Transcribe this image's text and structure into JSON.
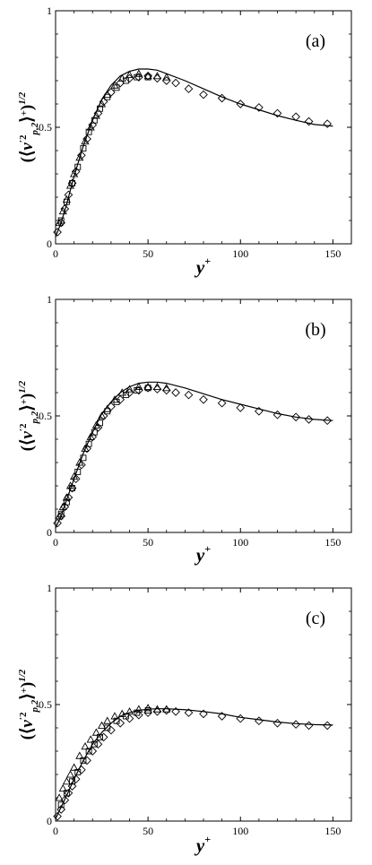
{
  "chart_data": [
    {
      "type": "line",
      "panel_label": "(a)",
      "xlabel": "y",
      "xlabel_sup": "+",
      "ylabel": "(⟨v′²p,2⟩⁺)¹ᐟ²",
      "xlim": [
        0,
        160
      ],
      "ylim": [
        0,
        1
      ],
      "xticks": [
        0,
        50,
        100,
        150
      ],
      "yticks": [
        0,
        0.5,
        1
      ],
      "xtick_labels": [
        "0",
        "50",
        "100",
        "150"
      ],
      "ytick_labels": [
        "0",
        "0.5",
        "1"
      ],
      "grid": false,
      "line": {
        "x": [
          0,
          3,
          6,
          10,
          15,
          20,
          25,
          30,
          35,
          40,
          45,
          50,
          55,
          60,
          70,
          80,
          90,
          100,
          110,
          120,
          130,
          140,
          150
        ],
        "y": [
          0.03,
          0.09,
          0.17,
          0.29,
          0.42,
          0.53,
          0.62,
          0.68,
          0.72,
          0.74,
          0.75,
          0.75,
          0.745,
          0.73,
          0.7,
          0.665,
          0.63,
          0.6,
          0.575,
          0.55,
          0.53,
          0.512,
          0.505
        ]
      },
      "series": [
        {
          "marker": "diamond",
          "x": [
            1,
            3,
            5,
            7,
            9,
            11,
            14,
            17,
            20,
            23,
            26,
            30,
            35,
            40,
            45,
            50,
            55,
            60,
            65,
            72,
            80,
            90,
            100,
            110,
            120,
            130,
            137,
            147
          ],
          "y": [
            0.05,
            0.09,
            0.15,
            0.21,
            0.26,
            0.31,
            0.38,
            0.45,
            0.51,
            0.56,
            0.61,
            0.65,
            0.69,
            0.71,
            0.715,
            0.72,
            0.71,
            0.7,
            0.69,
            0.665,
            0.64,
            0.625,
            0.6,
            0.585,
            0.56,
            0.545,
            0.525,
            0.515
          ]
        },
        {
          "marker": "triangle",
          "x": [
            2,
            4,
            6,
            8,
            10,
            13,
            16,
            19,
            22,
            25,
            28,
            32,
            36,
            40,
            45,
            50,
            55,
            60
          ],
          "y": [
            0.09,
            0.14,
            0.19,
            0.25,
            0.3,
            0.37,
            0.44,
            0.5,
            0.55,
            0.6,
            0.64,
            0.68,
            0.71,
            0.725,
            0.73,
            0.72,
            0.72,
            0.715
          ]
        },
        {
          "marker": "square",
          "x": [
            3,
            6,
            9,
            12,
            15,
            18,
            21,
            24,
            28,
            33,
            38,
            44,
            50
          ],
          "y": [
            0.1,
            0.18,
            0.26,
            0.33,
            0.41,
            0.48,
            0.53,
            0.58,
            0.63,
            0.67,
            0.7,
            0.715,
            0.715
          ]
        }
      ]
    },
    {
      "type": "line",
      "panel_label": "(b)",
      "xlabel": "y",
      "xlabel_sup": "+",
      "ylabel": "(⟨v′²p,2⟩⁺)¹ᐟ²",
      "xlim": [
        0,
        160
      ],
      "ylim": [
        0,
        1
      ],
      "xticks": [
        0,
        50,
        100,
        150
      ],
      "yticks": [
        0,
        0.5,
        1
      ],
      "xtick_labels": [
        "0",
        "50",
        "100",
        "150"
      ],
      "ytick_labels": [
        "0",
        "0.5",
        "1"
      ],
      "grid": false,
      "line": {
        "x": [
          0,
          3,
          6,
          10,
          15,
          20,
          25,
          30,
          35,
          40,
          45,
          50,
          55,
          60,
          70,
          80,
          90,
          100,
          110,
          120,
          130,
          140,
          150
        ],
        "y": [
          0.02,
          0.07,
          0.14,
          0.23,
          0.34,
          0.43,
          0.51,
          0.56,
          0.6,
          0.625,
          0.64,
          0.645,
          0.645,
          0.64,
          0.62,
          0.595,
          0.57,
          0.55,
          0.53,
          0.51,
          0.495,
          0.485,
          0.48
        ]
      },
      "series": [
        {
          "marker": "diamond",
          "x": [
            1,
            3,
            5,
            7,
            9,
            11,
            14,
            17,
            20,
            23,
            26,
            30,
            35,
            40,
            45,
            50,
            55,
            60,
            65,
            72,
            80,
            90,
            100,
            110,
            120,
            130,
            137,
            147
          ],
          "y": [
            0.04,
            0.07,
            0.11,
            0.15,
            0.19,
            0.23,
            0.29,
            0.36,
            0.41,
            0.45,
            0.5,
            0.54,
            0.57,
            0.6,
            0.61,
            0.62,
            0.615,
            0.61,
            0.6,
            0.59,
            0.57,
            0.555,
            0.535,
            0.52,
            0.505,
            0.495,
            0.485,
            0.48
          ]
        },
        {
          "marker": "triangle",
          "x": [
            2,
            4,
            6,
            8,
            10,
            13,
            16,
            19,
            22,
            25,
            28,
            32,
            36,
            40,
            45,
            50,
            55,
            60
          ],
          "y": [
            0.07,
            0.11,
            0.15,
            0.2,
            0.24,
            0.3,
            0.36,
            0.41,
            0.46,
            0.5,
            0.53,
            0.57,
            0.6,
            0.615,
            0.625,
            0.625,
            0.625,
            0.62
          ]
        },
        {
          "marker": "square",
          "x": [
            3,
            6,
            9,
            12,
            15,
            18,
            21,
            24,
            28,
            33,
            38,
            44,
            50
          ],
          "y": [
            0.08,
            0.13,
            0.19,
            0.26,
            0.32,
            0.38,
            0.43,
            0.47,
            0.52,
            0.56,
            0.59,
            0.61,
            0.62
          ]
        }
      ]
    },
    {
      "type": "line",
      "panel_label": "(c)",
      "xlabel": "y",
      "xlabel_sup": "+",
      "ylabel": "(⟨v′²p,2⟩⁺)¹ᐟ²",
      "xlim": [
        0,
        160
      ],
      "ylim": [
        0,
        1
      ],
      "xticks": [
        0,
        50,
        100,
        150
      ],
      "yticks": [
        0,
        0.5,
        1
      ],
      "xtick_labels": [
        "0",
        "50",
        "100",
        "150"
      ],
      "ytick_labels": [
        "0",
        "0.5",
        "1"
      ],
      "grid": false,
      "line": {
        "x": [
          0,
          3,
          6,
          10,
          15,
          20,
          25,
          30,
          35,
          40,
          45,
          50,
          55,
          60,
          70,
          80,
          90,
          100,
          110,
          120,
          130,
          140,
          150
        ],
        "y": [
          0.01,
          0.06,
          0.11,
          0.18,
          0.26,
          0.33,
          0.38,
          0.42,
          0.45,
          0.465,
          0.475,
          0.48,
          0.482,
          0.482,
          0.478,
          0.47,
          0.46,
          0.445,
          0.435,
          0.425,
          0.418,
          0.414,
          0.412
        ]
      },
      "series": [
        {
          "marker": "diamond",
          "x": [
            1,
            3,
            5,
            7,
            9,
            11,
            14,
            17,
            20,
            23,
            26,
            30,
            35,
            40,
            45,
            50,
            55,
            60,
            65,
            72,
            80,
            90,
            100,
            110,
            120,
            130,
            137,
            147
          ],
          "y": [
            0.02,
            0.05,
            0.09,
            0.12,
            0.15,
            0.18,
            0.22,
            0.26,
            0.3,
            0.33,
            0.36,
            0.39,
            0.42,
            0.44,
            0.455,
            0.465,
            0.47,
            0.475,
            0.47,
            0.465,
            0.46,
            0.45,
            0.44,
            0.43,
            0.42,
            0.415,
            0.41,
            0.41
          ]
        },
        {
          "marker": "triangle",
          "x": [
            2,
            4,
            6,
            8,
            10,
            13,
            16,
            19,
            22,
            25,
            28,
            32,
            36,
            40,
            45,
            50,
            55,
            60
          ],
          "y": [
            0.1,
            0.14,
            0.17,
            0.2,
            0.23,
            0.28,
            0.32,
            0.35,
            0.38,
            0.41,
            0.43,
            0.45,
            0.46,
            0.47,
            0.48,
            0.485,
            0.48,
            0.48
          ]
        },
        {
          "marker": "square",
          "x": [
            3,
            6,
            9,
            12,
            15,
            18,
            21,
            24,
            28,
            33,
            38,
            44,
            50
          ],
          "y": [
            0.07,
            0.12,
            0.17,
            0.21,
            0.26,
            0.3,
            0.33,
            0.36,
            0.4,
            0.43,
            0.45,
            0.465,
            0.475
          ]
        }
      ]
    }
  ]
}
